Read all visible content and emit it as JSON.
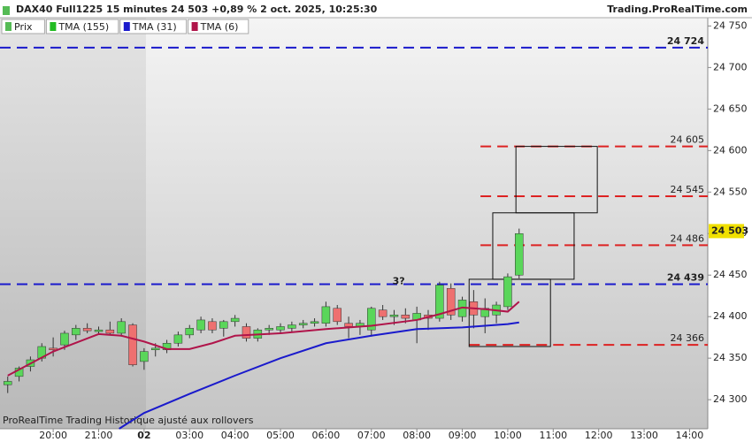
{
  "chart_data": {
    "type": "candlestick",
    "title": "DAX40 Full1225 15 minutes 24 503 +0,89 % 2 oct. 2025, 10:25:30",
    "source": "Trading.ProRealTime.com",
    "footer": "ProRealTime Trading  Historique ajusté aux rollovers",
    "annotation": {
      "text": "3?",
      "x": 7.6,
      "y": 24442,
      "color": "#2222cc"
    },
    "legend": [
      {
        "name": "Prix",
        "color": "#55bb55"
      },
      {
        "name": "TMA (155)",
        "color": "#22bb22"
      },
      {
        "name": "TMA (31)",
        "color": "#1a1acc"
      },
      {
        "name": "TMA (6)",
        "color": "#b0144a"
      }
    ],
    "xlim": [
      -1.17,
      14.4
    ],
    "ylim": [
      24265,
      24760
    ],
    "xticks": [
      {
        "value": 0,
        "label": "20:00"
      },
      {
        "value": 1,
        "label": "21:00"
      },
      {
        "value": 2,
        "label": "02"
      },
      {
        "value": 3,
        "label": "03:00"
      },
      {
        "value": 4,
        "label": "04:00"
      },
      {
        "value": 5,
        "label": "05:00"
      },
      {
        "value": 6,
        "label": "06:00"
      },
      {
        "value": 7,
        "label": "07:00"
      },
      {
        "value": 8,
        "label": "08:00"
      },
      {
        "value": 9,
        "label": "09:00"
      },
      {
        "value": 10,
        "label": "10:00"
      },
      {
        "value": 11,
        "label": "11:00"
      },
      {
        "value": 12,
        "label": "12:00"
      },
      {
        "value": 13,
        "label": "13:00"
      },
      {
        "value": 14,
        "label": "14:00"
      }
    ],
    "yticks": [
      {
        "value": 24300,
        "label": "24 300"
      },
      {
        "value": 24350,
        "label": "24 350"
      },
      {
        "value": 24400,
        "label": "24 400"
      },
      {
        "value": 24450,
        "label": "24 450"
      },
      {
        "value": 24500,
        "label": "24 500"
      },
      {
        "value": 24550,
        "label": "24 550"
      },
      {
        "value": 24600,
        "label": "24 600"
      },
      {
        "value": 24650,
        "label": "24 650"
      },
      {
        "value": 24700,
        "label": "24 700"
      },
      {
        "value": 24750,
        "label": "24 750"
      }
    ],
    "current_price": {
      "value": 24503,
      "label": "24 503",
      "color": "#f0e000"
    },
    "candle_colors": {
      "up": "#5ad65a",
      "down": "#ee7070",
      "edge": "#333333"
    },
    "candles": [
      {
        "x": -1.0,
        "open": 24318,
        "high": 24328,
        "low": 24308,
        "close": 24322
      },
      {
        "x": -0.75,
        "open": 24328,
        "high": 24340,
        "low": 24322,
        "close": 24338
      },
      {
        "x": -0.5,
        "open": 24340,
        "high": 24352,
        "low": 24334,
        "close": 24348
      },
      {
        "x": -0.25,
        "open": 24350,
        "high": 24368,
        "low": 24346,
        "close": 24364
      },
      {
        "x": 0.0,
        "open": 24362,
        "high": 24375,
        "low": 24352,
        "close": 24360
      },
      {
        "x": 0.25,
        "open": 24366,
        "high": 24383,
        "low": 24360,
        "close": 24380
      },
      {
        "x": 0.5,
        "open": 24378,
        "high": 24390,
        "low": 24372,
        "close": 24386
      },
      {
        "x": 0.75,
        "open": 24386,
        "high": 24392,
        "low": 24380,
        "close": 24383
      },
      {
        "x": 1.0,
        "open": 24382,
        "high": 24388,
        "low": 24378,
        "close": 24384
      },
      {
        "x": 1.25,
        "open": 24384,
        "high": 24394,
        "low": 24378,
        "close": 24380
      },
      {
        "x": 1.5,
        "open": 24380,
        "high": 24398,
        "low": 24376,
        "close": 24394
      },
      {
        "x": 1.75,
        "open": 24390,
        "high": 24392,
        "low": 24340,
        "close": 24342
      },
      {
        "x": 2.0,
        "open": 24346,
        "high": 24362,
        "low": 24336,
        "close": 24358
      },
      {
        "x": 2.25,
        "open": 24360,
        "high": 24368,
        "low": 24352,
        "close": 24362
      },
      {
        "x": 2.5,
        "open": 24360,
        "high": 24372,
        "low": 24356,
        "close": 24368
      },
      {
        "x": 2.75,
        "open": 24368,
        "high": 24382,
        "low": 24364,
        "close": 24378
      },
      {
        "x": 3.0,
        "open": 24378,
        "high": 24390,
        "low": 24374,
        "close": 24386
      },
      {
        "x": 3.25,
        "open": 24384,
        "high": 24400,
        "low": 24380,
        "close": 24396
      },
      {
        "x": 3.5,
        "open": 24394,
        "high": 24398,
        "low": 24380,
        "close": 24384
      },
      {
        "x": 3.75,
        "open": 24386,
        "high": 24396,
        "low": 24376,
        "close": 24394
      },
      {
        "x": 4.0,
        "open": 24394,
        "high": 24402,
        "low": 24388,
        "close": 24398
      },
      {
        "x": 4.25,
        "open": 24388,
        "high": 24392,
        "low": 24370,
        "close": 24374
      },
      {
        "x": 4.5,
        "open": 24374,
        "high": 24386,
        "low": 24370,
        "close": 24384
      },
      {
        "x": 4.75,
        "open": 24384,
        "high": 24390,
        "low": 24378,
        "close": 24386
      },
      {
        "x": 5.0,
        "open": 24384,
        "high": 24392,
        "low": 24380,
        "close": 24388
      },
      {
        "x": 5.25,
        "open": 24386,
        "high": 24394,
        "low": 24382,
        "close": 24390
      },
      {
        "x": 5.5,
        "open": 24390,
        "high": 24396,
        "low": 24386,
        "close": 24392
      },
      {
        "x": 5.75,
        "open": 24392,
        "high": 24398,
        "low": 24388,
        "close": 24394
      },
      {
        "x": 6.0,
        "open": 24392,
        "high": 24418,
        "low": 24388,
        "close": 24412
      },
      {
        "x": 6.25,
        "open": 24410,
        "high": 24414,
        "low": 24390,
        "close": 24394
      },
      {
        "x": 6.5,
        "open": 24392,
        "high": 24400,
        "low": 24374,
        "close": 24388
      },
      {
        "x": 6.75,
        "open": 24388,
        "high": 24396,
        "low": 24378,
        "close": 24392
      },
      {
        "x": 7.0,
        "open": 24384,
        "high": 24412,
        "low": 24376,
        "close": 24410
      },
      {
        "x": 7.25,
        "open": 24408,
        "high": 24414,
        "low": 24396,
        "close": 24400
      },
      {
        "x": 7.5,
        "open": 24400,
        "high": 24408,
        "low": 24390,
        "close": 24402
      },
      {
        "x": 7.75,
        "open": 24402,
        "high": 24410,
        "low": 24392,
        "close": 24398
      },
      {
        "x": 8.0,
        "open": 24396,
        "high": 24412,
        "low": 24368,
        "close": 24404
      },
      {
        "x": 8.25,
        "open": 24402,
        "high": 24408,
        "low": 24384,
        "close": 24398
      },
      {
        "x": 8.5,
        "open": 24398,
        "high": 24442,
        "low": 24394,
        "close": 24438
      },
      {
        "x": 8.75,
        "open": 24434,
        "high": 24440,
        "low": 24396,
        "close": 24402
      },
      {
        "x": 9.0,
        "open": 24400,
        "high": 24424,
        "low": 24394,
        "close": 24420
      },
      {
        "x": 9.25,
        "open": 24418,
        "high": 24432,
        "low": 24386,
        "close": 24402
      },
      {
        "x": 9.5,
        "open": 24400,
        "high": 24422,
        "low": 24380,
        "close": 24410
      },
      {
        "x": 9.75,
        "open": 24402,
        "high": 24418,
        "low": 24392,
        "close": 24414
      },
      {
        "x": 10.0,
        "open": 24412,
        "high": 24452,
        "low": 24408,
        "close": 24448
      },
      {
        "x": 10.25,
        "open": 24450,
        "high": 24506,
        "low": 24446,
        "close": 24500
      }
    ],
    "lines": [
      {
        "legend": 2,
        "width": 2,
        "x": [
          1.45,
          2,
          3,
          4,
          5,
          6,
          7,
          8,
          9,
          10,
          10.25
        ],
        "values": [
          24265,
          24284,
          24307,
          24329,
          24350,
          24368,
          24377,
          24385,
          24387,
          24391,
          24393
        ]
      },
      {
        "legend": 3,
        "width": 2,
        "x": [
          -1,
          0,
          1,
          1.5,
          2,
          2.5,
          3,
          3.5,
          4,
          5,
          6,
          7,
          8,
          8.5,
          9,
          9.5,
          10,
          10.25
        ],
        "values": [
          24329,
          24358,
          24379,
          24377,
          24370,
          24361,
          24361,
          24368,
          24377,
          24380,
          24385,
          24389,
          24396,
          24403,
          24411,
          24409,
          24406,
          24418
        ]
      }
    ],
    "levels": [
      {
        "value": 24724,
        "label": "24 724",
        "color": "#1a1acc",
        "from": -1.17
      },
      {
        "value": 24605,
        "label": "24 605",
        "color": "#dd2222",
        "from": 9.4
      },
      {
        "value": 24545,
        "label": "24 545",
        "color": "#dd2222",
        "from": 9.4
      },
      {
        "value": 24486,
        "label": "24 486",
        "color": "#dd2222",
        "from": 9.4
      },
      {
        "value": 24439,
        "label": "24 439",
        "color": "#1a1acc",
        "from": -1.17
      },
      {
        "value": 24366,
        "label": "24 366",
        "color": "#dd2222",
        "from": 9.15
      }
    ],
    "boxes": [
      {
        "x": [
          9.15,
          10.94
        ],
        "y": [
          24364,
          24445
        ]
      },
      {
        "x": [
          9.67,
          11.46
        ],
        "y": [
          24445,
          24525
        ]
      },
      {
        "x": [
          10.18,
          11.97
        ],
        "y": [
          24525,
          24605
        ]
      }
    ]
  }
}
